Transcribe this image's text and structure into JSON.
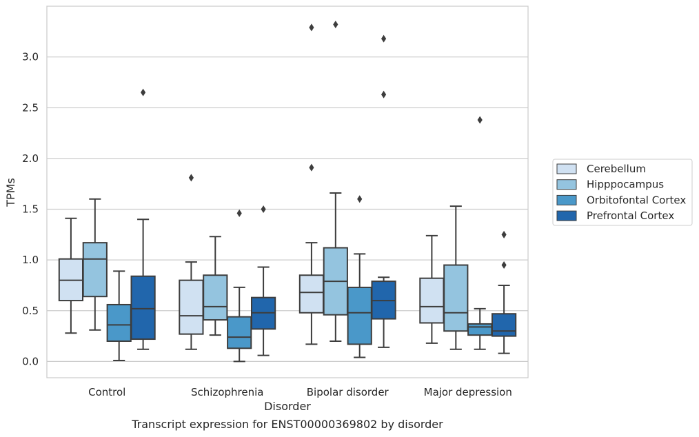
{
  "chart_data": {
    "type": "box",
    "title": "",
    "caption": "Transcript expression for ENST00000369802 by disorder",
    "xlabel": "Disorder",
    "ylabel": "TPMs",
    "ylim": [
      -0.16,
      3.5
    ],
    "yticks": [
      "0.0",
      "0.5",
      "1.0",
      "1.5",
      "2.0",
      "2.5",
      "3.0"
    ],
    "grid": "horizontal",
    "legend_position": "outside-right",
    "categories": [
      "Control",
      "Schizophrenia",
      "Bipolar disorder",
      "Major depression"
    ],
    "series": [
      {
        "name": "Cerebellum",
        "color": "#d0e1f2",
        "boxes": [
          {
            "whislo": 0.28,
            "q1": 0.6,
            "med": 0.8,
            "q3": 1.01,
            "whishi": 1.41,
            "fliers": []
          },
          {
            "whislo": 0.12,
            "q1": 0.27,
            "med": 0.45,
            "q3": 0.8,
            "whishi": 0.98,
            "fliers": [
              1.81
            ]
          },
          {
            "whislo": 0.17,
            "q1": 0.48,
            "med": 0.68,
            "q3": 0.85,
            "whishi": 1.17,
            "fliers": [
              1.91,
              3.29
            ]
          },
          {
            "whislo": 0.18,
            "q1": 0.38,
            "med": 0.54,
            "q3": 0.82,
            "whishi": 1.24,
            "fliers": []
          }
        ]
      },
      {
        "name": "Hipppocampus",
        "color": "#94c4df",
        "boxes": [
          {
            "whislo": 0.31,
            "q1": 0.64,
            "med": 1.01,
            "q3": 1.17,
            "whishi": 1.6,
            "fliers": []
          },
          {
            "whislo": 0.26,
            "q1": 0.41,
            "med": 0.54,
            "q3": 0.85,
            "whishi": 1.23,
            "fliers": []
          },
          {
            "whislo": 0.2,
            "q1": 0.46,
            "med": 0.79,
            "q3": 1.12,
            "whishi": 1.66,
            "fliers": [
              3.32
            ]
          },
          {
            "whislo": 0.12,
            "q1": 0.3,
            "med": 0.48,
            "q3": 0.95,
            "whishi": 1.53,
            "fliers": []
          }
        ]
      },
      {
        "name": "Orbitofontal Cortex",
        "color": "#4a98c9",
        "boxes": [
          {
            "whislo": 0.01,
            "q1": 0.2,
            "med": 0.36,
            "q3": 0.56,
            "whishi": 0.89,
            "fliers": []
          },
          {
            "whislo": 0.0,
            "q1": 0.13,
            "med": 0.24,
            "q3": 0.44,
            "whishi": 0.73,
            "fliers": [
              1.46
            ]
          },
          {
            "whislo": 0.04,
            "q1": 0.17,
            "med": 0.48,
            "q3": 0.73,
            "whishi": 1.06,
            "fliers": [
              1.6
            ]
          },
          {
            "whislo": 0.12,
            "q1": 0.26,
            "med": 0.34,
            "q3": 0.37,
            "whishi": 0.52,
            "fliers": [
              2.38
            ]
          }
        ]
      },
      {
        "name": "Prefrontal Cortex",
        "color": "#2166ac",
        "boxes": [
          {
            "whislo": 0.12,
            "q1": 0.22,
            "med": 0.52,
            "q3": 0.84,
            "whishi": 1.4,
            "fliers": [
              2.65
            ]
          },
          {
            "whislo": 0.06,
            "q1": 0.32,
            "med": 0.48,
            "q3": 0.63,
            "whishi": 0.93,
            "fliers": [
              1.5
            ]
          },
          {
            "whislo": 0.14,
            "q1": 0.42,
            "med": 0.6,
            "q3": 0.79,
            "whishi": 0.83,
            "fliers": [
              2.63,
              3.18
            ]
          },
          {
            "whislo": 0.08,
            "q1": 0.25,
            "med": 0.3,
            "q3": 0.47,
            "whishi": 0.75,
            "fliers": [
              0.95,
              1.25
            ]
          }
        ]
      }
    ]
  }
}
